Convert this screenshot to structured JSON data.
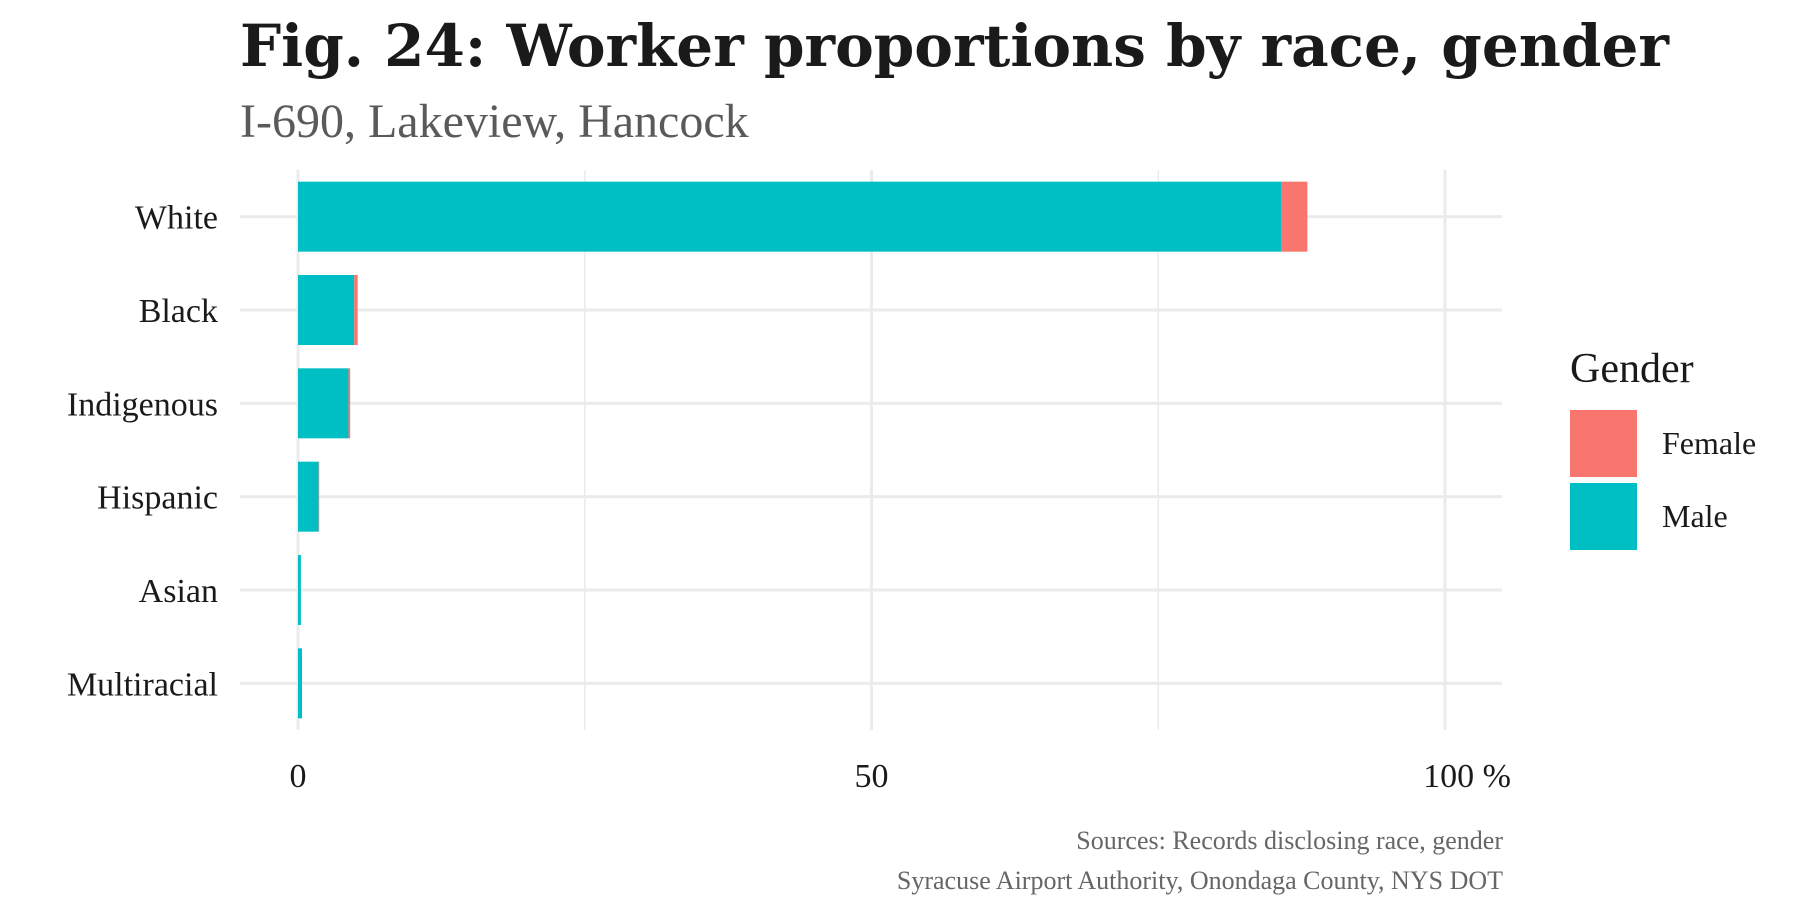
{
  "chart_data": {
    "type": "bar",
    "orientation": "horizontal",
    "stacked": true,
    "title": "Fig. 24: Worker proportions by race, gender",
    "subtitle": "I-690, Lakeview, Hancock",
    "categories": [
      "White",
      "Black",
      "Indigenous",
      "Hispanic",
      "Asian",
      "Multiracial"
    ],
    "series": [
      {
        "name": "Male",
        "color": "#00BFC4",
        "values": [
          85.7,
          4.9,
          4.4,
          1.8,
          0.25,
          0.35
        ]
      },
      {
        "name": "Female",
        "color": "#F8766D",
        "values": [
          2.3,
          0.3,
          0.15,
          0.05,
          0.0,
          0.0
        ]
      }
    ],
    "xlim": [
      0,
      105
    ],
    "x_ticks": [
      0,
      50,
      100
    ],
    "x_tick_labels": [
      "0",
      "50",
      "100 %"
    ],
    "grid": true,
    "legend": {
      "title": "Gender",
      "position": "right",
      "entries": [
        {
          "label": "Female",
          "color": "#F8766D"
        },
        {
          "label": "Male",
          "color": "#00BFC4"
        }
      ]
    },
    "caption": [
      "Sources: Records disclosing race, gender",
      "Syracuse Airport Authority, Onondaga County, NYS DOT"
    ]
  }
}
